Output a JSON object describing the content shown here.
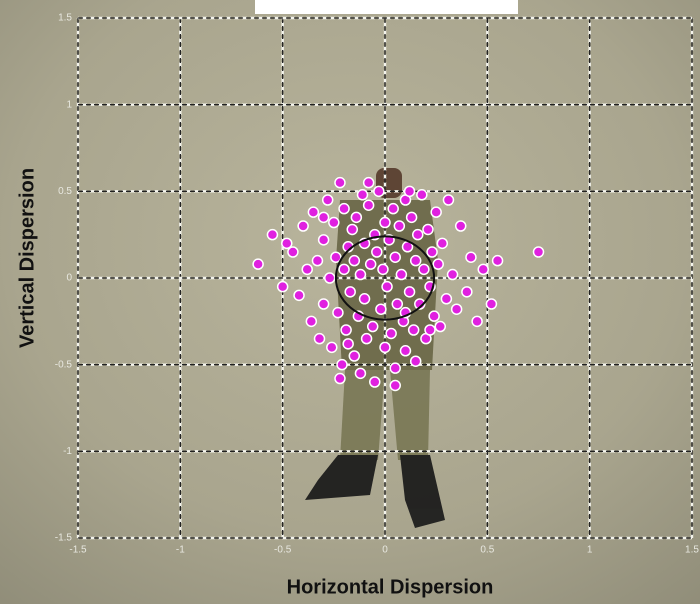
{
  "chart_data": {
    "type": "scatter",
    "x_label": "Horizontal Dispersion",
    "y_label": "Vertical Dispersion",
    "xlim": [
      -1.5,
      1.5
    ],
    "ylim": [
      -1.5,
      1.5
    ],
    "xticks": [
      -1.5,
      -1,
      -0.5,
      0,
      0.5,
      1,
      1.5
    ],
    "yticks": [
      -1.5,
      -1,
      -0.5,
      0,
      0.5,
      1,
      1.5
    ],
    "grid": true,
    "color": "#e020e0",
    "circle_radius": 0.24,
    "x": [
      -0.62,
      -0.55,
      -0.5,
      -0.48,
      -0.45,
      -0.42,
      -0.4,
      -0.38,
      -0.36,
      -0.35,
      -0.33,
      -0.32,
      -0.3,
      -0.3,
      -0.28,
      -0.27,
      -0.26,
      -0.25,
      -0.24,
      -0.23,
      -0.22,
      -0.21,
      -0.2,
      -0.2,
      -0.19,
      -0.18,
      -0.17,
      -0.16,
      -0.15,
      -0.15,
      -0.14,
      -0.13,
      -0.12,
      -0.12,
      -0.11,
      -0.1,
      -0.1,
      -0.09,
      -0.08,
      -0.07,
      -0.06,
      -0.05,
      -0.05,
      -0.04,
      -0.03,
      -0.02,
      -0.01,
      0,
      0,
      0.01,
      0.02,
      0.03,
      0.04,
      0.05,
      0.05,
      0.06,
      0.07,
      0.08,
      0.09,
      0.1,
      0.1,
      0.11,
      0.12,
      0.13,
      0.14,
      0.15,
      0.15,
      0.16,
      0.17,
      0.18,
      0.19,
      0.2,
      0.21,
      0.22,
      0.23,
      0.24,
      0.25,
      0.26,
      0.27,
      0.28,
      0.3,
      0.31,
      0.33,
      0.35,
      0.37,
      0.4,
      0.42,
      0.45,
      0.48,
      0.52,
      0.55,
      0.75,
      -0.22,
      -0.08,
      0.05,
      0.12,
      -0.18,
      0.22,
      -0.3,
      0.1
    ],
    "y": [
      0.08,
      0.25,
      -0.05,
      0.2,
      0.15,
      -0.1,
      0.3,
      0.05,
      -0.25,
      0.38,
      0.1,
      -0.35,
      0.22,
      -0.15,
      0.45,
      0.0,
      -0.4,
      0.32,
      0.12,
      -0.2,
      0.55,
      -0.5,
      0.05,
      0.4,
      -0.3,
      0.18,
      -0.08,
      0.28,
      -0.45,
      0.1,
      0.35,
      -0.22,
      0.02,
      -0.55,
      0.48,
      0.2,
      -0.12,
      -0.35,
      0.42,
      0.08,
      -0.28,
      0.25,
      -0.6,
      0.15,
      0.5,
      -0.18,
      0.05,
      0.32,
      -0.4,
      -0.05,
      0.22,
      -0.32,
      0.4,
      0.12,
      -0.52,
      -0.15,
      0.3,
      0.02,
      -0.25,
      0.45,
      -0.42,
      0.18,
      -0.08,
      0.35,
      -0.3,
      0.1,
      -0.48,
      0.25,
      -0.15,
      0.48,
      0.05,
      -0.35,
      0.28,
      -0.05,
      0.15,
      -0.22,
      0.38,
      0.08,
      -0.28,
      0.2,
      -0.12,
      0.45,
      0.02,
      -0.18,
      0.3,
      -0.08,
      0.12,
      -0.25,
      0.05,
      -0.15,
      0.1,
      0.15,
      -0.58,
      0.55,
      -0.62,
      0.5,
      -0.38,
      -0.3,
      0.35,
      -0.2
    ]
  }
}
